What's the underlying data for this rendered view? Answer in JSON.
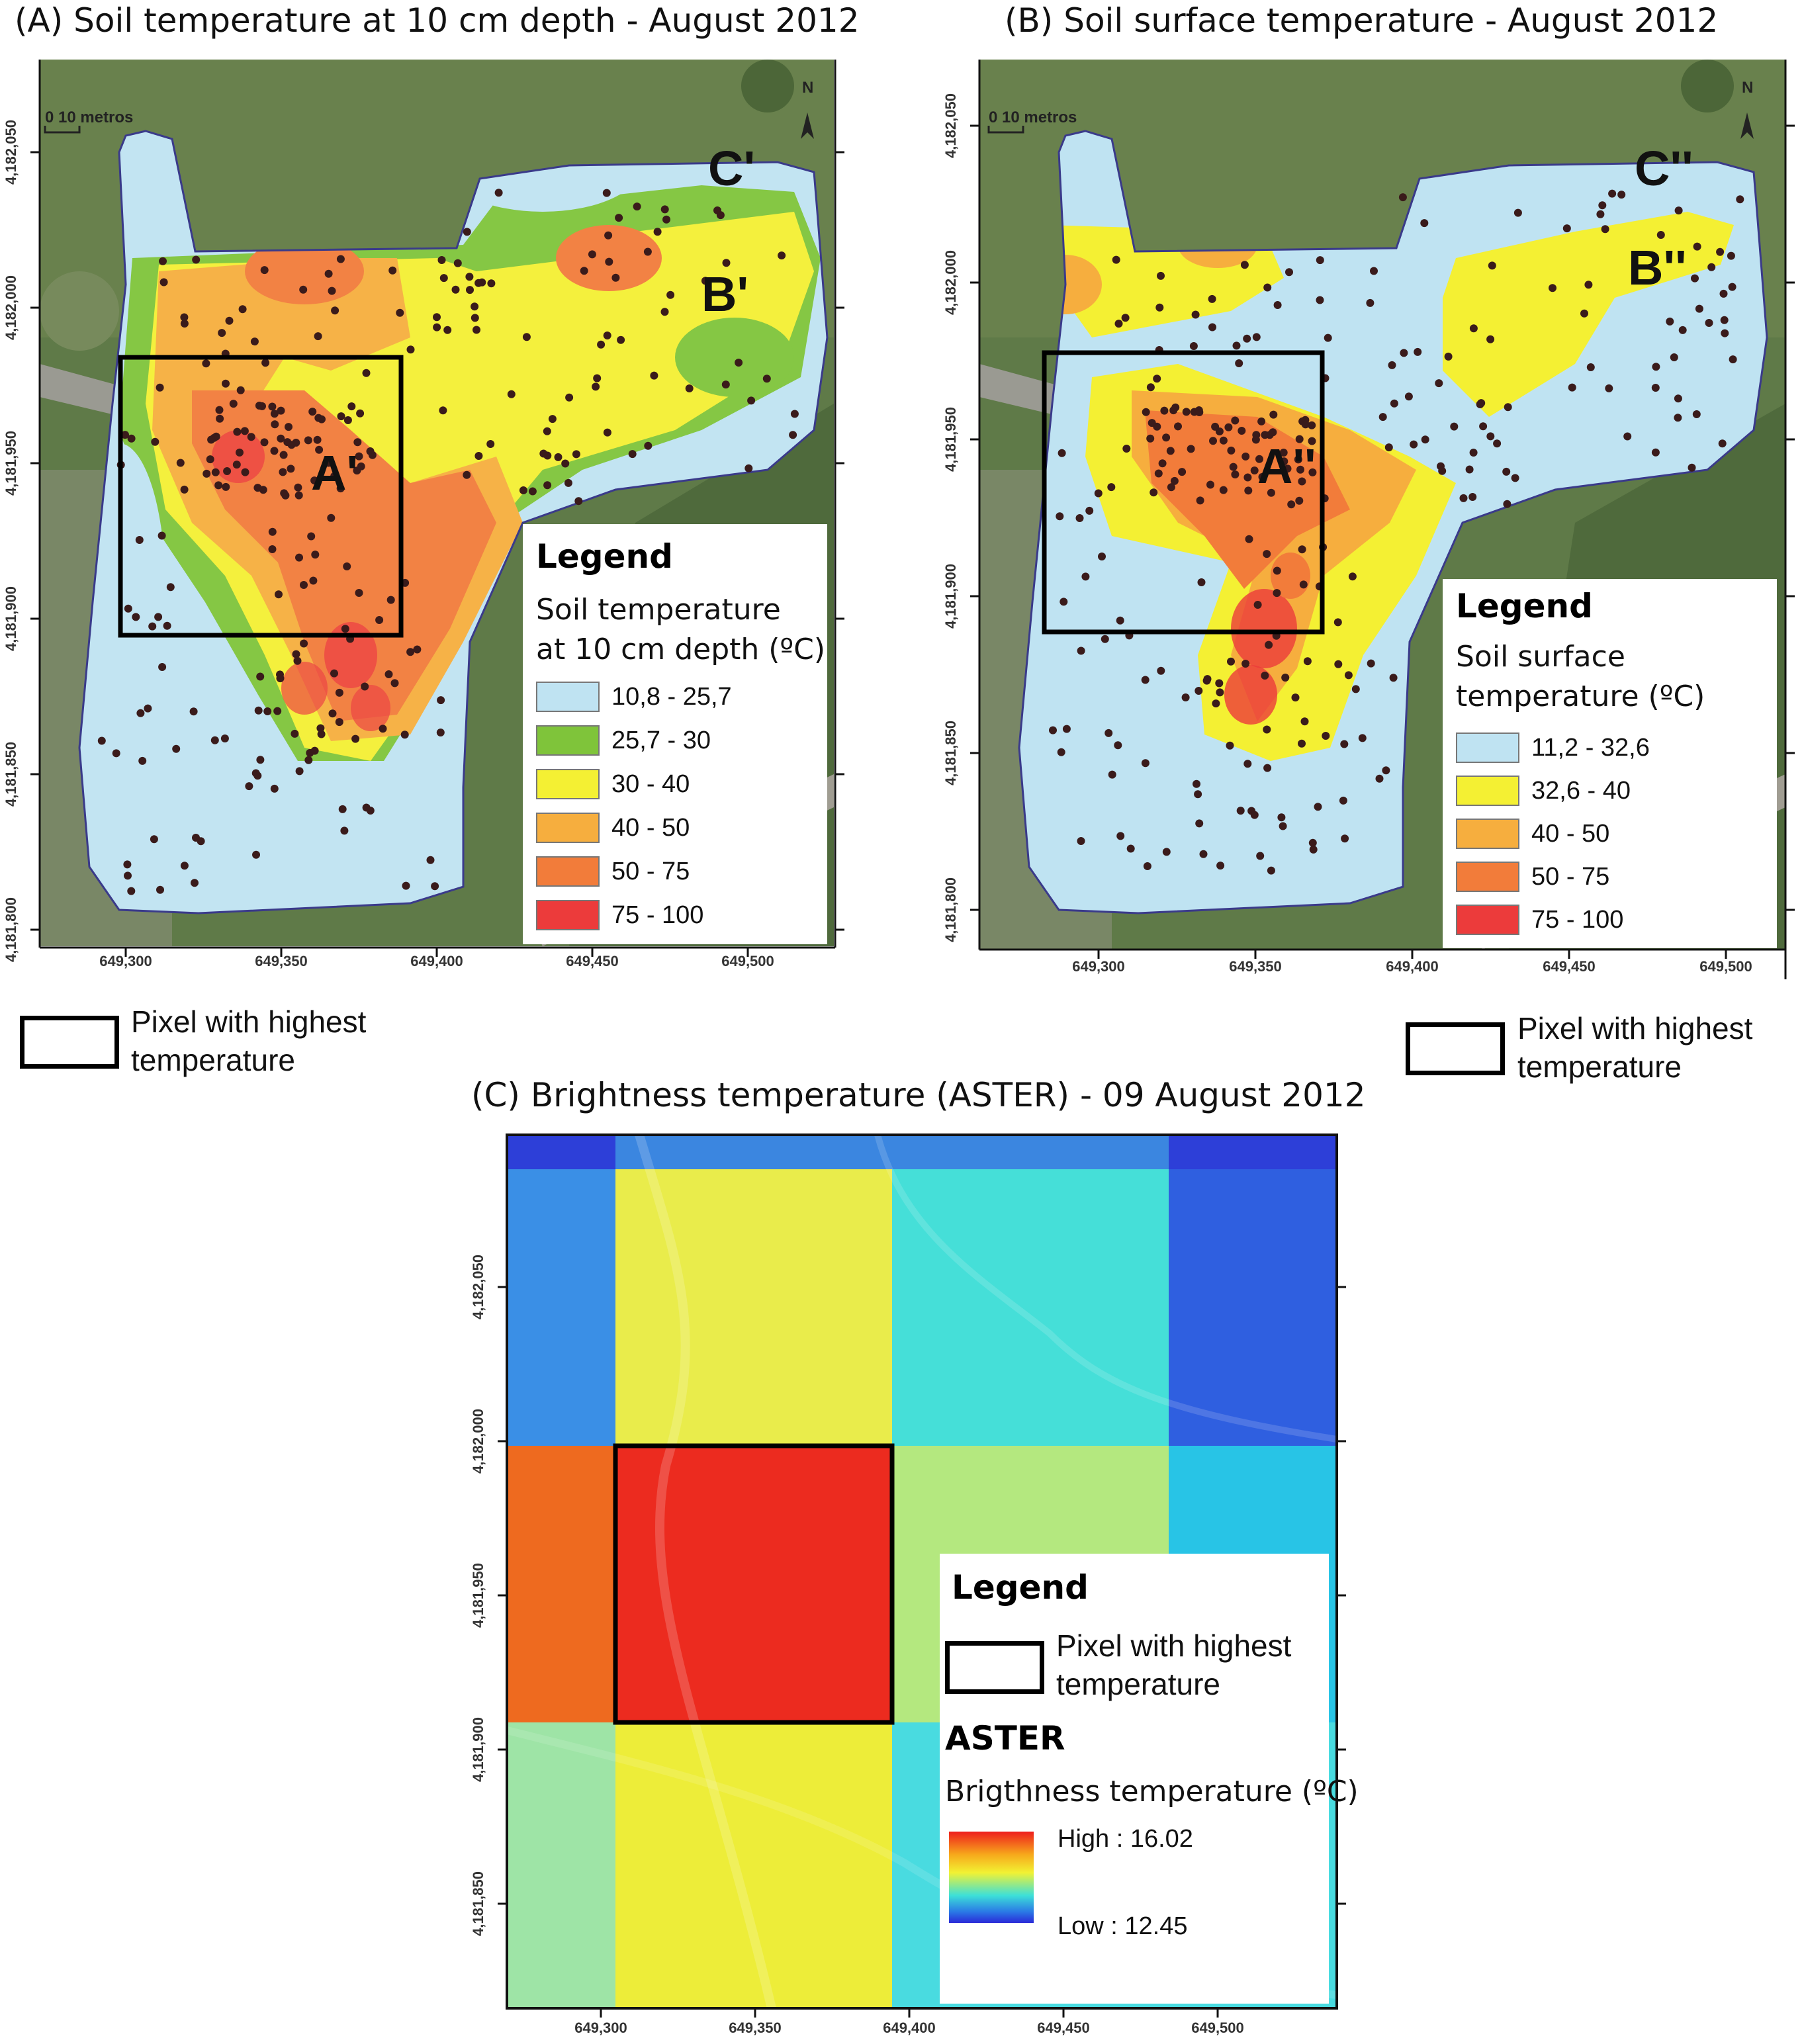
{
  "panel_a": {
    "title": "(A) Soil temperature at 10 cm depth - August 2012",
    "scale_bar": "0   10 metros",
    "north": "N",
    "zones": [
      "A'",
      "B'",
      "C'"
    ],
    "x_ticks": [
      "649,300",
      "649,350",
      "649,400",
      "649,450",
      "649,500"
    ],
    "y_ticks": [
      "4,182,050",
      "4,182,000",
      "4,181,950",
      "4,181,900",
      "4,181,850",
      "4,181,800"
    ],
    "legend": {
      "title": "Legend",
      "subtitle_line1": "Soil temperature",
      "subtitle_line2": "at 10 cm depth (ºC)",
      "classes": [
        {
          "label": "10,8 - 25,7",
          "color": "#bfe3f2"
        },
        {
          "label": "25,7 - 30",
          "color": "#7fc43a"
        },
        {
          "label": "30 - 40",
          "color": "#f4f033"
        },
        {
          "label": "40 - 50",
          "color": "#f6ae3e"
        },
        {
          "label": "50 - 75",
          "color": "#f27c3a"
        },
        {
          "label": "75 - 100",
          "color": "#ec3b3b"
        }
      ]
    },
    "pixel_note_line1": "Pixel with highest",
    "pixel_note_line2": "temperature"
  },
  "panel_b": {
    "title": "(B) Soil surface temperature - August 2012",
    "scale_bar": "0   10 metros",
    "north": "N",
    "zones": [
      "A''",
      "B''",
      "C''"
    ],
    "x_ticks": [
      "649,300",
      "649,350",
      "649,400",
      "649,450",
      "649,500"
    ],
    "y_ticks": [
      "4,182,050",
      "4,182,000",
      "4,181,950",
      "4,181,900",
      "4,181,850",
      "4,181,800"
    ],
    "legend": {
      "title": "Legend",
      "subtitle_line1": "Soil  surface",
      "subtitle_line2": "temperature  (ºC)",
      "classes": [
        {
          "label": "11,2 - 32,6",
          "color": "#bfe3f2"
        },
        {
          "label": "32,6 - 40",
          "color": "#f4f033"
        },
        {
          "label": "40 - 50",
          "color": "#f6ae3e"
        },
        {
          "label": "50 - 75",
          "color": "#f27c3a"
        },
        {
          "label": "75 - 100",
          "color": "#ec3b3b"
        }
      ]
    },
    "pixel_note_line1": "Pixel with highest",
    "pixel_note_line2": "temperature"
  },
  "panel_c": {
    "title": "(C) Brightness temperature (ASTER) - 09 August 2012",
    "x_ticks": [
      "649,300",
      "649,350",
      "649,400",
      "649,450",
      "649,500"
    ],
    "y_ticks": [
      "4,182,050",
      "4,182,000",
      "4,181,950",
      "4,181,900",
      "4,181,850"
    ],
    "pixel_colors": [
      [
        "#2d3fd8",
        "#3b86e0",
        "#3b86e0",
        "#2d3fd8"
      ],
      [
        "#3a8fe6",
        "#e9ec4b",
        "#45dfd8",
        "#2f5fe0"
      ],
      [
        "#ee6a1f",
        "#ec2b1f",
        "#b4e87f",
        "#28c4e6"
      ],
      [
        "#9ee4a6",
        "#eded39",
        "#49dbe0",
        "#49dbe0"
      ]
    ],
    "legend": {
      "title": "Legend",
      "pixel_note_line1": "Pixel with highest",
      "pixel_note_line2": "temperature",
      "sensor": "ASTER",
      "subtitle": "Brigthness temperature (ºC)",
      "high": "High : 16.02",
      "low": "Low : 12.45"
    }
  }
}
